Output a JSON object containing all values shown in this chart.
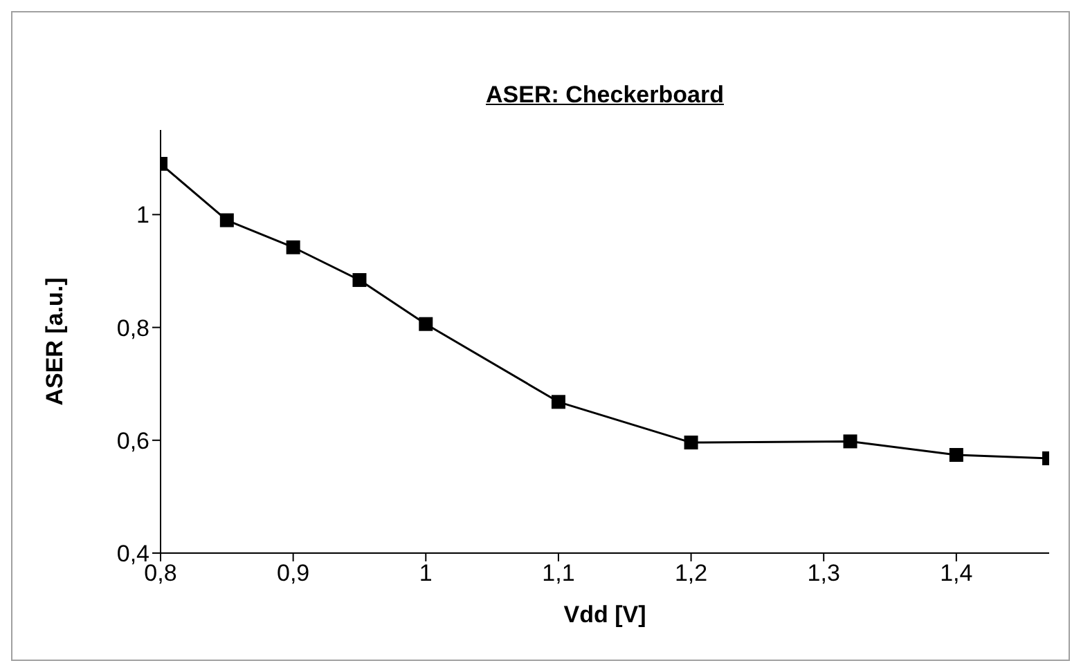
{
  "chart_data": {
    "type": "line",
    "title": "ASER: Checkerboard",
    "xlabel": "Vdd [V]",
    "ylabel": "ASER [a.u.]",
    "x": [
      0.8,
      0.85,
      0.9,
      0.95,
      1.0,
      1.1,
      1.2,
      1.32,
      1.4,
      1.47
    ],
    "series": [
      {
        "color": "#000000",
        "values": [
          1.09,
          0.99,
          0.942,
          0.884,
          0.806,
          0.668,
          0.596,
          0.598,
          0.574,
          0.568
        ]
      }
    ],
    "xlim": [
      0.8,
      1.47
    ],
    "xticks": [
      {
        "value": 0.8,
        "label": "0,8"
      },
      {
        "value": 0.9,
        "label": "0,9"
      },
      1,
      {
        "value": 1.1,
        "label": "1,1"
      },
      {
        "value": 1.2,
        "label": "1,2"
      },
      {
        "value": 1.3,
        "label": "1,3"
      },
      {
        "value": 1.4,
        "label": "1,4"
      }
    ],
    "ylim": [
      0.4,
      1.15
    ],
    "yticks": [
      {
        "value": 0.4,
        "label": "0,4"
      },
      {
        "value": 0.6,
        "label": "0,6"
      },
      {
        "value": 0.8,
        "label": "0,8"
      },
      1
    ],
    "marker": "square",
    "line_style": "solid",
    "grid": false,
    "legend": false
  }
}
